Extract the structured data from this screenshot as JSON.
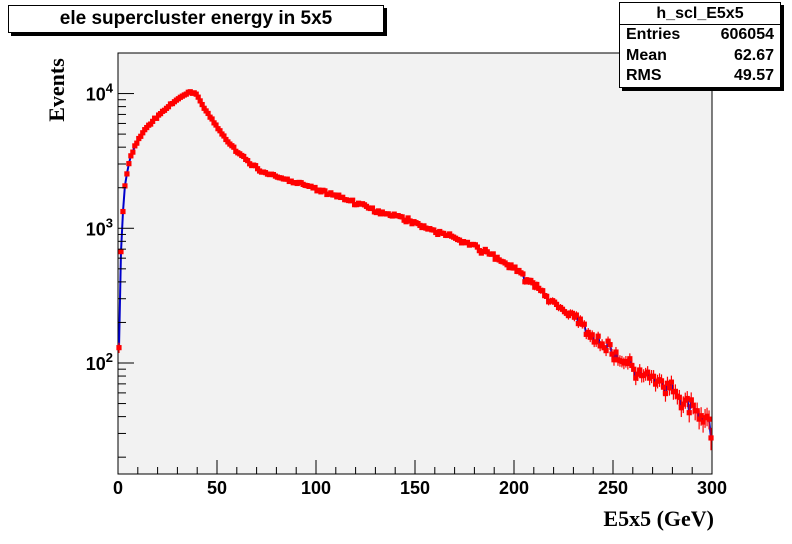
{
  "chart_data": {
    "type": "scatter",
    "title": "ele supercluster energy in 5x5",
    "xlabel": "E5x5 (GeV)",
    "ylabel": "Events",
    "xlim": [
      0,
      300
    ],
    "ylim": [
      15,
      20000
    ],
    "yscale": "log",
    "x_ticks": [
      "0",
      "50",
      "100",
      "150",
      "200",
      "250",
      "300"
    ],
    "y_ticks": [
      {
        "base": "10",
        "exp": "2"
      },
      {
        "base": "10",
        "exp": "3"
      },
      {
        "base": "10",
        "exp": "4"
      }
    ],
    "grid": false,
    "line_color": "#0000cc",
    "marker_color": "#ff0000",
    "frame_fill": "#f2f2f2",
    "bin_width": 1,
    "anchors": [
      [
        0,
        30
      ],
      [
        0.5,
        130
      ],
      [
        1,
        450
      ],
      [
        2,
        1000
      ],
      [
        3,
        1800
      ],
      [
        4,
        2300
      ],
      [
        5,
        2800
      ],
      [
        6,
        3200
      ],
      [
        8,
        3900
      ],
      [
        10,
        4500
      ],
      [
        12,
        5000
      ],
      [
        15,
        5700
      ],
      [
        20,
        6800
      ],
      [
        25,
        7900
      ],
      [
        30,
        9000
      ],
      [
        33,
        9700
      ],
      [
        36,
        10200
      ],
      [
        38,
        10300
      ],
      [
        40,
        9700
      ],
      [
        42,
        8600
      ],
      [
        45,
        7200
      ],
      [
        50,
        5600
      ],
      [
        55,
        4500
      ],
      [
        60,
        3700
      ],
      [
        65,
        3200
      ],
      [
        70,
        2800
      ],
      [
        75,
        2550
      ],
      [
        80,
        2400
      ],
      [
        90,
        2200
      ],
      [
        100,
        1950
      ],
      [
        110,
        1750
      ],
      [
        120,
        1550
      ],
      [
        130,
        1350
      ],
      [
        140,
        1250
      ],
      [
        150,
        1100
      ],
      [
        160,
        950
      ],
      [
        170,
        850
      ],
      [
        180,
        730
      ],
      [
        190,
        620
      ],
      [
        200,
        500
      ],
      [
        210,
        380
      ],
      [
        220,
        280
      ],
      [
        230,
        220
      ],
      [
        240,
        160
      ],
      [
        250,
        120
      ],
      [
        260,
        90
      ],
      [
        270,
        75
      ],
      [
        280,
        60
      ],
      [
        290,
        45
      ],
      [
        299,
        35
      ]
    ],
    "stats": {
      "name": "h_scl_E5x5",
      "rows": [
        {
          "label": "Entries",
          "value": "606054"
        },
        {
          "label": "Mean",
          "value": "62.67"
        },
        {
          "label": "RMS",
          "value": "49.57"
        }
      ]
    }
  }
}
